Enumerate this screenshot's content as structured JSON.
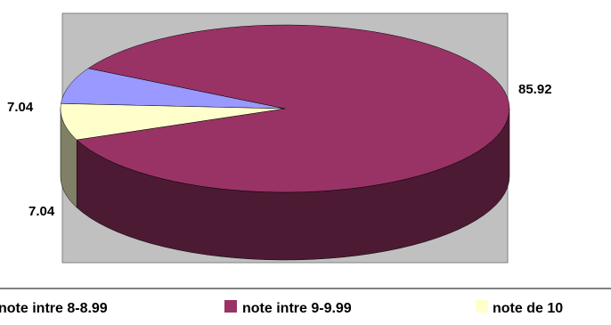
{
  "chart_data": {
    "type": "pie",
    "three_d": true,
    "plot_area_color": "#c0c0c0",
    "slices": [
      {
        "label": "note intre 8-8.99",
        "value": 7.04,
        "display": "7.04",
        "color": "#9999ff",
        "side_color": "#4d4d80"
      },
      {
        "label": "note intre 9-9.99",
        "value": 85.92,
        "display": "85.92",
        "color": "#993366",
        "side_color": "#4d1a33"
      },
      {
        "label": "note de 10",
        "value": 7.04,
        "display": "7.04",
        "color": "#ffffcc",
        "side_color": "#808066"
      }
    ],
    "legend_position": "bottom"
  }
}
